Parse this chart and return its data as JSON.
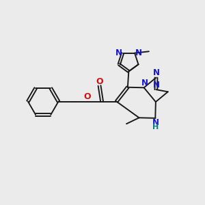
{
  "background_color": "#ebebeb",
  "bond_color": "#1a1a1a",
  "nitrogen_color": "#1414cc",
  "oxygen_color": "#cc1414",
  "hydrogen_color": "#008080",
  "figsize": [
    3.0,
    3.0
  ],
  "dpi": 100,
  "bond_lw": 1.4,
  "font_size": 8.5,
  "xlim": [
    0,
    10
  ],
  "ylim": [
    0,
    10
  ]
}
